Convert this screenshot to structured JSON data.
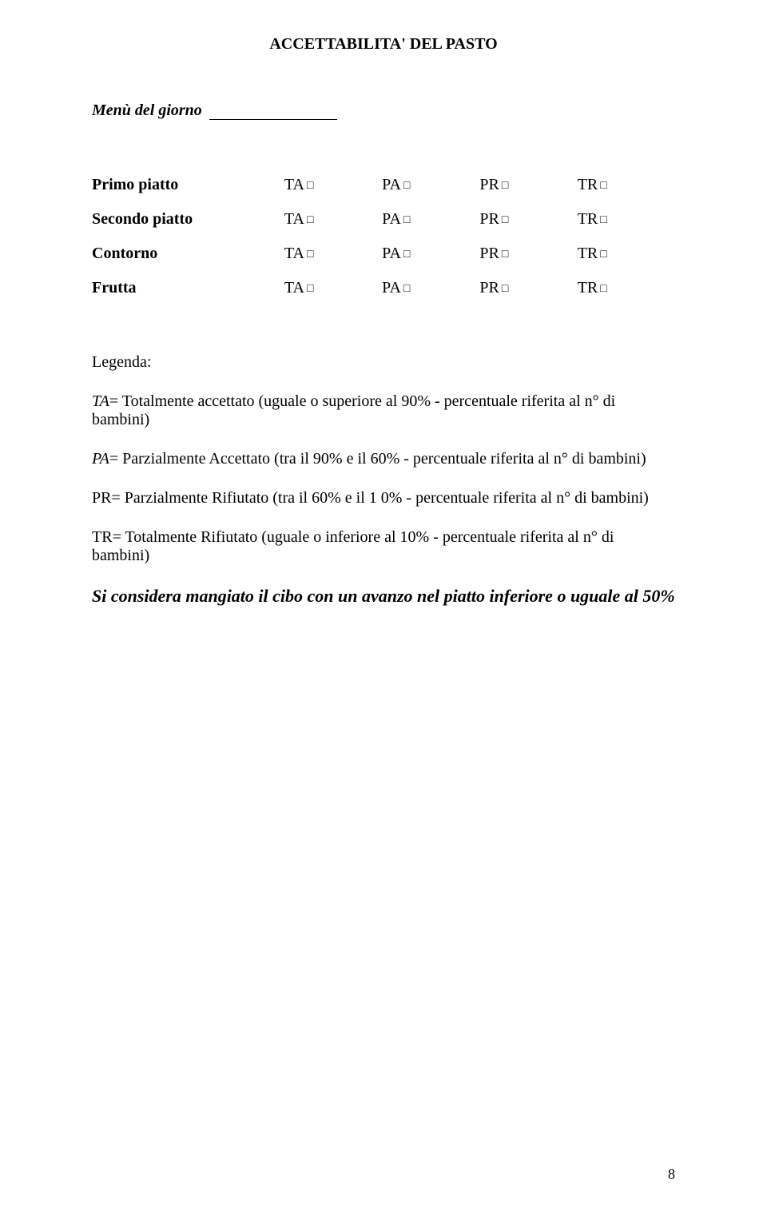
{
  "title": "ACCETTABILITA' DEL PASTO",
  "menuLabel": "Menù del giorno",
  "boxChar": "□",
  "options": [
    "TA",
    "PA",
    "PR",
    "TR"
  ],
  "rows": [
    {
      "label": "Primo piatto"
    },
    {
      "label": "Secondo piatto"
    },
    {
      "label": "Contorno"
    },
    {
      "label": "Frutta"
    }
  ],
  "legendHeading": "Legenda:",
  "legend": [
    {
      "code": "TA",
      "sep": "= ",
      "text": "Totalmente accettato   (uguale o superiore al 90% - percentuale riferita al n° di bambini)"
    },
    {
      "code": "PA",
      "sep": "= ",
      "text": "Parzialmente Accettato  (tra il 90% e il 60% - percentuale riferita al n° di bambini)"
    },
    {
      "code": "PR",
      "sep": "= ",
      "text": "Parzialmente Rifiutato (tra il 60% e il 1 0% - percentuale riferita al n° di bambini)",
      "plain": true
    },
    {
      "code": "TR",
      "sep": "= ",
      "text": "Totalmente Rifiutato   (uguale o inferiore al 10% - percentuale riferita al n° di bambini)",
      "plain": true
    }
  ],
  "footer": "Si considera mangiato il cibo con un avanzo nel piatto inferiore o uguale al 50%",
  "pageNumber": "8"
}
